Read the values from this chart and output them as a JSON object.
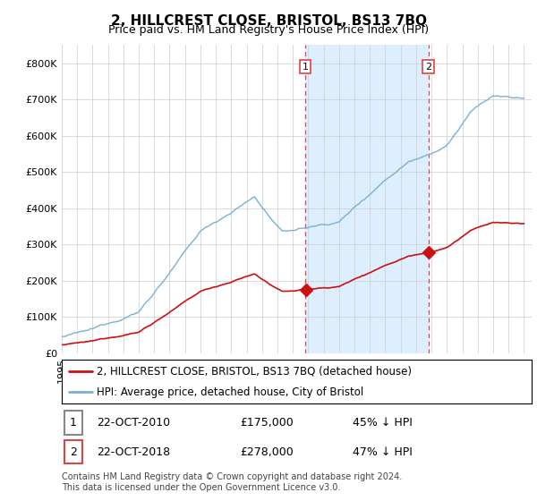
{
  "title": "2, HILLCREST CLOSE, BRISTOL, BS13 7BQ",
  "subtitle": "Price paid vs. HM Land Registry's House Price Index (HPI)",
  "hpi_color": "#7ab0d4",
  "price_color": "#cc1111",
  "sale1_t": 2010.792,
  "sale1_price": 175000,
  "sale2_t": 2018.792,
  "sale2_price": 278000,
  "ylim_max": 850000,
  "xlim_min": 1995.0,
  "xlim_max": 2025.5,
  "shade_color": "#ddeeff",
  "vline_color": "#dd4444",
  "legend_line1": "2, HILLCREST CLOSE, BRISTOL, BS13 7BQ (detached house)",
  "legend_line2": "HPI: Average price, detached house, City of Bristol",
  "annotation1_date": "22-OCT-2010",
  "annotation1_price": "£175,000",
  "annotation1_pct": "45% ↓ HPI",
  "annotation2_date": "22-OCT-2018",
  "annotation2_price": "£278,000",
  "annotation2_pct": "47% ↓ HPI",
  "footer": "Contains HM Land Registry data © Crown copyright and database right 2024.\nThis data is licensed under the Open Government Licence v3.0."
}
